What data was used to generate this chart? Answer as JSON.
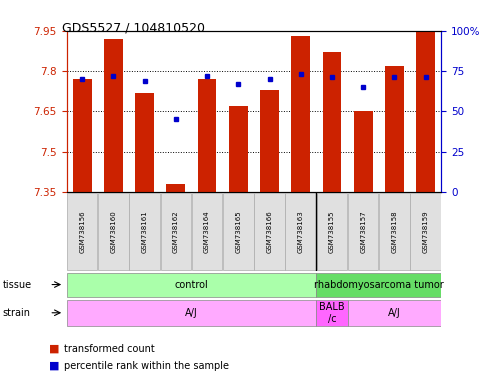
{
  "title": "GDS5527 / 104810520",
  "samples": [
    "GSM738156",
    "GSM738160",
    "GSM738161",
    "GSM738162",
    "GSM738164",
    "GSM738165",
    "GSM738166",
    "GSM738163",
    "GSM738155",
    "GSM738157",
    "GSM738158",
    "GSM738159"
  ],
  "bar_values": [
    7.77,
    7.92,
    7.72,
    7.38,
    7.77,
    7.67,
    7.73,
    7.93,
    7.87,
    7.65,
    7.82,
    7.95
  ],
  "percentile_values": [
    70,
    72,
    69,
    45,
    72,
    67,
    70,
    73,
    71,
    65,
    71,
    71
  ],
  "ymin": 7.35,
  "ymax": 7.95,
  "y2min": 0,
  "y2max": 100,
  "yticks": [
    7.35,
    7.5,
    7.65,
    7.8,
    7.95
  ],
  "y2ticks": [
    0,
    25,
    50,
    75,
    100
  ],
  "bar_color": "#cc2200",
  "dot_color": "#0000cc",
  "bar_width": 0.6,
  "tissue_groups": [
    {
      "label": "control",
      "start": 0,
      "end": 8,
      "color": "#aaffaa"
    },
    {
      "label": "rhabdomyosarcoma tumor",
      "start": 8,
      "end": 12,
      "color": "#66dd66"
    }
  ],
  "strain_groups": [
    {
      "label": "A/J",
      "start": 0,
      "end": 8,
      "color": "#ffaaff"
    },
    {
      "label": "BALB\n/c",
      "start": 8,
      "end": 9,
      "color": "#ff66ff"
    },
    {
      "label": "A/J",
      "start": 9,
      "end": 12,
      "color": "#ffaaff"
    }
  ],
  "legend_red": "transformed count",
  "legend_blue": "percentile rank within the sample",
  "left_axis_color": "#cc2200",
  "right_axis_color": "#0000cc",
  "background_color": "#ffffff",
  "tissue_label": "tissue",
  "strain_label": "strain",
  "fig_width": 4.93,
  "fig_height": 3.84,
  "dpi": 100
}
